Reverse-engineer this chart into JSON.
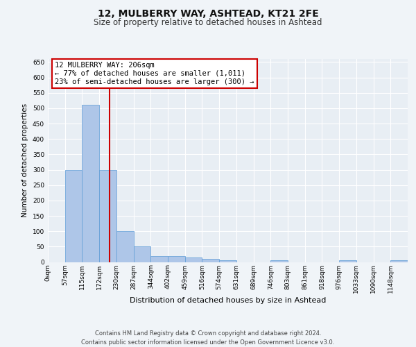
{
  "title": "12, MULBERRY WAY, ASHTEAD, KT21 2FE",
  "subtitle": "Size of property relative to detached houses in Ashtead",
  "xlabel": "Distribution of detached houses by size in Ashtead",
  "ylabel": "Number of detached properties",
  "footer_line1": "Contains HM Land Registry data © Crown copyright and database right 2024.",
  "footer_line2": "Contains public sector information licensed under the Open Government Licence v3.0.",
  "bin_labels": [
    "0sqm",
    "57sqm",
    "115sqm",
    "172sqm",
    "230sqm",
    "287sqm",
    "344sqm",
    "402sqm",
    "459sqm",
    "516sqm",
    "574sqm",
    "631sqm",
    "689sqm",
    "746sqm",
    "803sqm",
    "861sqm",
    "918sqm",
    "976sqm",
    "1033sqm",
    "1090sqm",
    "1148sqm"
  ],
  "bar_heights": [
    0,
    300,
    510,
    300,
    100,
    50,
    20,
    20,
    15,
    10,
    5,
    0,
    0,
    5,
    0,
    0,
    0,
    5,
    0,
    0,
    5
  ],
  "bar_color": "#aec6e8",
  "bar_edge_color": "#5b9bd5",
  "fig_background_color": "#f0f4f8",
  "axes_background_color": "#e8eef4",
  "grid_color": "#ffffff",
  "annotation_box_color": "#ffffff",
  "annotation_border_color": "#cc0000",
  "annotation_text_line1": "12 MULBERRY WAY: 206sqm",
  "annotation_text_line2": "← 77% of detached houses are smaller (1,011)",
  "annotation_text_line3": "23% of semi-detached houses are larger (300) →",
  "vline_color": "#cc0000",
  "vline_x_bin": 2.6,
  "ylim": [
    0,
    660
  ],
  "yticks": [
    0,
    50,
    100,
    150,
    200,
    250,
    300,
    350,
    400,
    450,
    500,
    550,
    600,
    650
  ],
  "bin_width": 1.0,
  "n_bins": 21,
  "title_fontsize": 10,
  "subtitle_fontsize": 8.5,
  "ylabel_fontsize": 7.5,
  "xlabel_fontsize": 8,
  "tick_fontsize": 6.5,
  "footer_fontsize": 6,
  "annotation_fontsize": 7.5
}
